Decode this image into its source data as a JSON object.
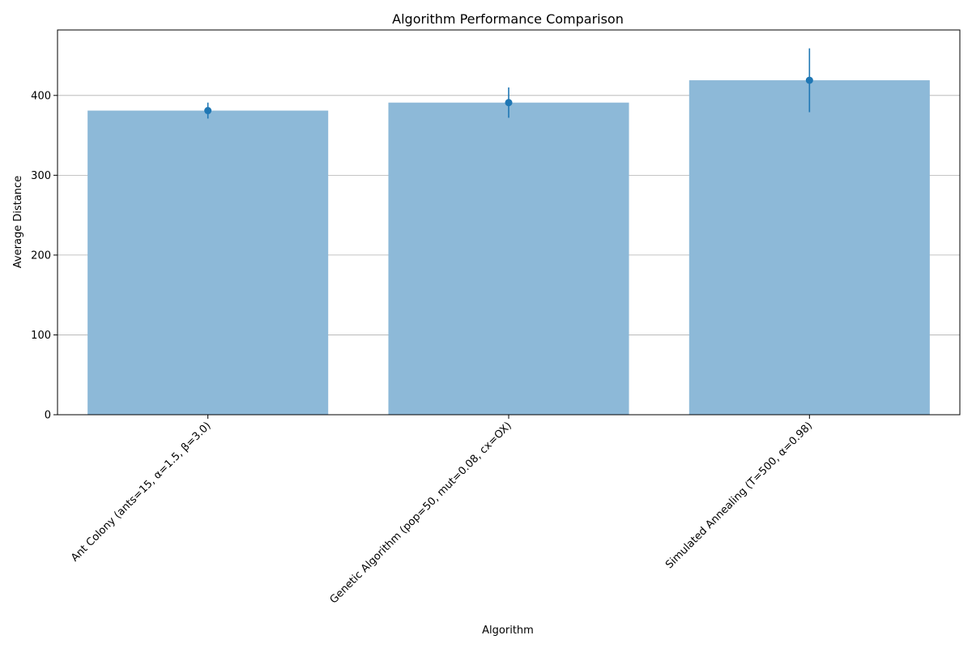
{
  "chart_data": {
    "type": "bar",
    "title": "Algorithm Performance Comparison",
    "xlabel": "Algorithm",
    "ylabel": "Average Distance",
    "categories": [
      "Ant Colony (ants=15, α=1.5, β=3.0)",
      "Genetic Algorithm (pop=50, mut=0.08, cx=OX)",
      "Simulated Annealing (T=500, α=0.98)"
    ],
    "values": [
      381,
      391,
      419
    ],
    "error": [
      10,
      19,
      40
    ],
    "ylim": [
      0,
      482
    ],
    "yticks": [
      0,
      100,
      200,
      300,
      400
    ],
    "ytick_labels": [
      "0",
      "100",
      "200",
      "300",
      "400"
    ],
    "grid": "y",
    "legend": "none",
    "colors": {
      "bar": "#8db9d8",
      "marker": "#1f77b4",
      "grid": "#b0b0b0",
      "axes": "#000000"
    }
  }
}
